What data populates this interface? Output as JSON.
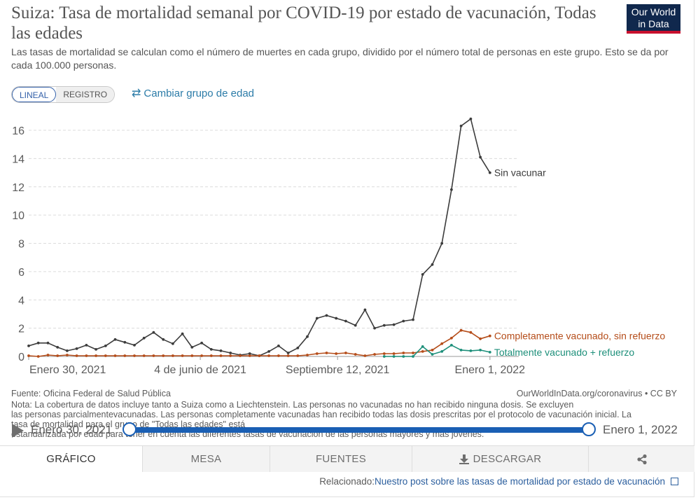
{
  "header": {
    "title": "Suiza: Tasa de mortalidad semanal por COVID-19 por estado de vacunación, Todas las edades",
    "subtitle": "Las tasas de mortalidad se calculan como el número de muertes en cada grupo, dividido por el número total de personas en este grupo. Esto se da por cada 100.000 personas.",
    "logo_line1": "Our World",
    "logo_line2": "in Data",
    "logo_colors": {
      "background": "#10284d",
      "stripe": "#c8102e"
    }
  },
  "controls": {
    "scale_options": [
      "LINEAL",
      "REGISTRO"
    ],
    "scale_selected": "LINEAL",
    "change_age_label": "Cambiar grupo de edad",
    "change_age_icon": "swap-arrows-icon"
  },
  "chart_data": {
    "type": "line",
    "title": "Suiza: Tasa de mortalidad semanal por COVID-19 por estado de vacunación, Todas las edades",
    "xlabel": "",
    "ylabel": "",
    "ylim": [
      0,
      17
    ],
    "yticks": [
      0,
      2,
      4,
      6,
      8,
      10,
      12,
      14,
      16
    ],
    "grid": "horizontal-dashed",
    "legend": "line-end-labels",
    "x_range": [
      "2021-01-30",
      "2022-01-22"
    ],
    "xticks": [
      {
        "date": "2021-01-30",
        "label": "Enero 30, 2021"
      },
      {
        "date": "2021-06-04",
        "label": "4 de junio de 2021"
      },
      {
        "date": "2021-09-12",
        "label": "Septiembre 12, 2021"
      },
      {
        "date": "2022-01-01",
        "label": "Enero 1, 2022"
      }
    ],
    "series": [
      {
        "name": "Sin vacunar",
        "color": "#3c3c3c",
        "points": [
          [
            "2021-01-30",
            0.75
          ],
          [
            "2021-02-06",
            0.95
          ],
          [
            "2021-02-13",
            0.95
          ],
          [
            "2021-02-20",
            0.65
          ],
          [
            "2021-02-27",
            0.4
          ],
          [
            "2021-03-06",
            0.55
          ],
          [
            "2021-03-13",
            0.8
          ],
          [
            "2021-03-20",
            0.5
          ],
          [
            "2021-03-27",
            0.75
          ],
          [
            "2021-04-03",
            1.2
          ],
          [
            "2021-04-10",
            1.0
          ],
          [
            "2021-04-17",
            0.8
          ],
          [
            "2021-04-24",
            1.3
          ],
          [
            "2021-05-01",
            1.7
          ],
          [
            "2021-05-08",
            1.2
          ],
          [
            "2021-05-15",
            0.9
          ],
          [
            "2021-05-22",
            1.6
          ],
          [
            "2021-05-29",
            0.65
          ],
          [
            "2021-06-05",
            0.95
          ],
          [
            "2021-06-12",
            0.5
          ],
          [
            "2021-06-19",
            0.4
          ],
          [
            "2021-06-26",
            0.25
          ],
          [
            "2021-07-03",
            0.1
          ],
          [
            "2021-07-10",
            0.2
          ],
          [
            "2021-07-17",
            0.05
          ],
          [
            "2021-07-24",
            0.35
          ],
          [
            "2021-07-31",
            0.75
          ],
          [
            "2021-08-07",
            0.25
          ],
          [
            "2021-08-14",
            0.6
          ],
          [
            "2021-08-21",
            1.4
          ],
          [
            "2021-08-28",
            2.7
          ],
          [
            "2021-09-04",
            2.9
          ],
          [
            "2021-09-11",
            2.7
          ],
          [
            "2021-09-18",
            2.5
          ],
          [
            "2021-09-25",
            2.2
          ],
          [
            "2021-10-02",
            3.3
          ],
          [
            "2021-10-09",
            2.0
          ],
          [
            "2021-10-16",
            2.2
          ],
          [
            "2021-10-23",
            2.25
          ],
          [
            "2021-10-30",
            2.5
          ],
          [
            "2021-11-06",
            2.6
          ],
          [
            "2021-11-13",
            5.8
          ],
          [
            "2021-11-20",
            6.5
          ],
          [
            "2021-11-27",
            8.0
          ],
          [
            "2021-12-04",
            11.8
          ],
          [
            "2021-12-11",
            16.3
          ],
          [
            "2021-12-18",
            16.8
          ],
          [
            "2021-12-25",
            14.1
          ],
          [
            "2022-01-01",
            13.0
          ]
        ]
      },
      {
        "name": "Completamente vacunado, sin refuerzo",
        "color": "#b54d1a",
        "points": [
          [
            "2021-01-30",
            0.05
          ],
          [
            "2021-02-06",
            0.0
          ],
          [
            "2021-02-13",
            0.1
          ],
          [
            "2021-02-20",
            0.05
          ],
          [
            "2021-02-27",
            0.1
          ],
          [
            "2021-03-06",
            0.05
          ],
          [
            "2021-03-13",
            0.05
          ],
          [
            "2021-03-20",
            0.05
          ],
          [
            "2021-03-27",
            0.05
          ],
          [
            "2021-04-03",
            0.05
          ],
          [
            "2021-04-10",
            0.05
          ],
          [
            "2021-04-17",
            0.05
          ],
          [
            "2021-04-24",
            0.05
          ],
          [
            "2021-05-01",
            0.05
          ],
          [
            "2021-05-08",
            0.05
          ],
          [
            "2021-05-15",
            0.05
          ],
          [
            "2021-05-22",
            0.05
          ],
          [
            "2021-05-29",
            0.05
          ],
          [
            "2021-06-05",
            0.05
          ],
          [
            "2021-06-12",
            0.05
          ],
          [
            "2021-06-19",
            0.05
          ],
          [
            "2021-06-26",
            0.05
          ],
          [
            "2021-07-03",
            0.05
          ],
          [
            "2021-07-10",
            0.05
          ],
          [
            "2021-07-17",
            0.05
          ],
          [
            "2021-07-24",
            0.05
          ],
          [
            "2021-07-31",
            0.05
          ],
          [
            "2021-08-07",
            0.05
          ],
          [
            "2021-08-14",
            0.05
          ],
          [
            "2021-08-21",
            0.1
          ],
          [
            "2021-08-28",
            0.2
          ],
          [
            "2021-09-04",
            0.25
          ],
          [
            "2021-09-11",
            0.2
          ],
          [
            "2021-09-18",
            0.25
          ],
          [
            "2021-09-25",
            0.15
          ],
          [
            "2021-10-02",
            0.05
          ],
          [
            "2021-10-09",
            0.15
          ],
          [
            "2021-10-16",
            0.2
          ],
          [
            "2021-10-23",
            0.2
          ],
          [
            "2021-10-30",
            0.25
          ],
          [
            "2021-11-06",
            0.25
          ],
          [
            "2021-11-13",
            0.35
          ],
          [
            "2021-11-20",
            0.45
          ],
          [
            "2021-11-27",
            0.9
          ],
          [
            "2021-12-04",
            1.3
          ],
          [
            "2021-12-11",
            1.85
          ],
          [
            "2021-12-18",
            1.7
          ],
          [
            "2021-12-25",
            1.25
          ],
          [
            "2022-01-01",
            1.45
          ]
        ]
      },
      {
        "name": "Totalmente vacunado + refuerzo",
        "color": "#1d8f7a",
        "points": [
          [
            "2021-10-16",
            0.0
          ],
          [
            "2021-10-23",
            0.0
          ],
          [
            "2021-10-30",
            0.0
          ],
          [
            "2021-11-06",
            0.0
          ],
          [
            "2021-11-13",
            0.7
          ],
          [
            "2021-11-20",
            0.15
          ],
          [
            "2021-11-27",
            0.35
          ],
          [
            "2021-12-04",
            0.8
          ],
          [
            "2021-12-11",
            0.45
          ],
          [
            "2021-12-18",
            0.4
          ],
          [
            "2021-12-25",
            0.45
          ],
          [
            "2022-01-01",
            0.3
          ]
        ]
      }
    ]
  },
  "footer": {
    "source": "Fuente: Oficina Federal de Salud Pública",
    "url": "OurWorldInData.org/coronavirus • CC BY",
    "note_lines": [
      "Nota: La cobertura de datos incluye tanto a Suiza como a Liechtenstein. Las personas no vacunadas no han recibido ninguna dosis. Se excluyen",
      "las personas parcialmentevacunadas. Las personas completamente vacunadas han recibido todas las dosis prescritas por el protocolo de vacunación inicial. La",
      "tasa de mortalidad para el grupo de \"Todas las edades\" está",
      "estandarizada por edad para tener en cuenta las diferentes tasas de vacunación de las personas mayores y más jóvenes."
    ]
  },
  "timeline": {
    "start_label": "Enero 30, 2021",
    "end_label": "Enero 1, 2022",
    "play_icon": "play-icon"
  },
  "tabs": [
    {
      "label": "GRÁFICO",
      "active": true
    },
    {
      "label": "MESA",
      "active": false
    },
    {
      "label": "FUENTES",
      "active": false
    },
    {
      "label": "DESCARGAR",
      "active": false,
      "icon": "download-icon"
    },
    {
      "label": "",
      "active": false,
      "icon": "share-icon"
    }
  ],
  "related": {
    "prefix": "Relacionado:",
    "link": "Nuestro post sobre las tasas de mortalidad por estado de vacunación",
    "icon": "external-link-icon"
  }
}
